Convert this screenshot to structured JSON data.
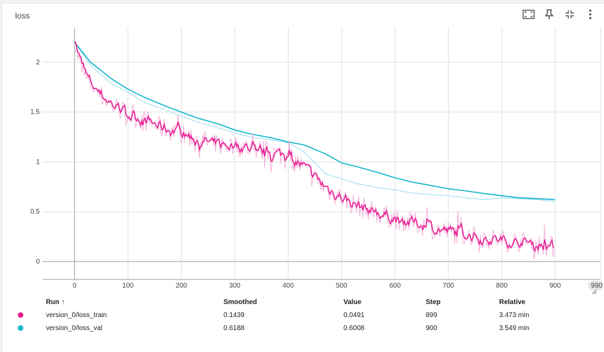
{
  "card": {
    "title": "loss"
  },
  "toolbar": [
    {
      "name": "fullscreen-icon"
    },
    {
      "name": "pin-icon"
    },
    {
      "name": "fit-domain-icon"
    },
    {
      "name": "more-vert-icon"
    }
  ],
  "colors": {
    "train": "#e91e93",
    "train_raw": "#f4b3da",
    "val": "#12b5cb",
    "val_raw": "#a8e2ef",
    "grid": "#e0e0e0",
    "axis": "#9e9e9e"
  },
  "chart_data": {
    "type": "line",
    "title": "loss",
    "xlabel": "",
    "ylabel": "",
    "xlim": [
      -60,
      985
    ],
    "ylim": [
      -0.18,
      2.35
    ],
    "xticks": [
      0,
      100,
      200,
      300,
      400,
      500,
      600,
      700,
      800,
      900
    ],
    "xtick_labels": [
      "0",
      "100",
      "200",
      "300",
      "400",
      "500",
      "600",
      "700",
      "800",
      "900"
    ],
    "xtick_cut_label": "990",
    "yticks": [
      0,
      0.5,
      1,
      1.5,
      2
    ],
    "ytick_labels": [
      "0",
      "0.5",
      "1",
      "1.5",
      "2"
    ],
    "grid": true,
    "legend": "table-below",
    "series": [
      {
        "name": "version_0/loss_train",
        "kind": "noisy",
        "x": [
          0,
          10,
          20,
          30,
          50,
          70,
          100,
          130,
          160,
          200,
          230,
          260,
          300,
          330,
          360,
          400,
          420,
          440,
          460,
          480,
          500,
          520,
          540,
          560,
          580,
          600,
          640,
          680,
          720,
          760,
          800,
          840,
          870,
          899
        ],
        "y": [
          2.2,
          1.98,
          1.85,
          1.78,
          1.66,
          1.57,
          1.47,
          1.42,
          1.35,
          1.28,
          1.23,
          1.18,
          1.16,
          1.14,
          1.1,
          1.06,
          0.98,
          0.88,
          0.78,
          0.7,
          0.64,
          0.58,
          0.54,
          0.5,
          0.46,
          0.43,
          0.38,
          0.32,
          0.28,
          0.24,
          0.21,
          0.19,
          0.17,
          0.14
        ],
        "smoothed_last": "0.1439",
        "value_last": "0.0491",
        "step_last": "899",
        "relative_last": "3.473 min"
      },
      {
        "name": "version_0/loss_val",
        "kind": "smooth",
        "x": [
          0,
          30,
          70,
          100,
          130,
          170,
          200,
          230,
          270,
          300,
          330,
          370,
          400,
          430,
          470,
          500,
          530,
          570,
          600,
          630,
          670,
          700,
          730,
          770,
          800,
          830,
          870,
          900
        ],
        "y": [
          2.2,
          2.0,
          1.83,
          1.73,
          1.65,
          1.56,
          1.5,
          1.44,
          1.38,
          1.32,
          1.28,
          1.24,
          1.2,
          1.17,
          1.08,
          0.99,
          0.95,
          0.89,
          0.84,
          0.8,
          0.76,
          0.73,
          0.71,
          0.68,
          0.66,
          0.64,
          0.63,
          0.62
        ],
        "raw_x": [
          0,
          30,
          70,
          100,
          130,
          170,
          200,
          230,
          270,
          300,
          330,
          370,
          400,
          430,
          470,
          500,
          530,
          570,
          600,
          630,
          670,
          700,
          730,
          770,
          800,
          830,
          870,
          900
        ],
        "raw_y": [
          2.2,
          1.97,
          1.78,
          1.7,
          1.6,
          1.52,
          1.46,
          1.4,
          1.34,
          1.29,
          1.25,
          1.22,
          1.19,
          1.1,
          0.88,
          0.83,
          0.78,
          0.74,
          0.72,
          0.69,
          0.67,
          0.66,
          0.64,
          0.62,
          0.64,
          0.63,
          0.62,
          0.6
        ],
        "smoothed_last": "0.6188",
        "value_last": "0.6008",
        "step_last": "900",
        "relative_last": "3.549 min"
      }
    ]
  },
  "table": {
    "headers": {
      "run": "Run",
      "run_sort": "↑",
      "smoothed": "Smoothed",
      "value": "Value",
      "step": "Step",
      "relative": "Relative"
    },
    "rows": [
      {
        "run": "version_0/loss_train",
        "smoothed": "0.1439",
        "value": "0.0491",
        "step": "899",
        "relative": "3.473 min"
      },
      {
        "run": "version_0/loss_val",
        "smoothed": "0.6188",
        "value": "0.6008",
        "step": "900",
        "relative": "3.549 min"
      }
    ]
  }
}
